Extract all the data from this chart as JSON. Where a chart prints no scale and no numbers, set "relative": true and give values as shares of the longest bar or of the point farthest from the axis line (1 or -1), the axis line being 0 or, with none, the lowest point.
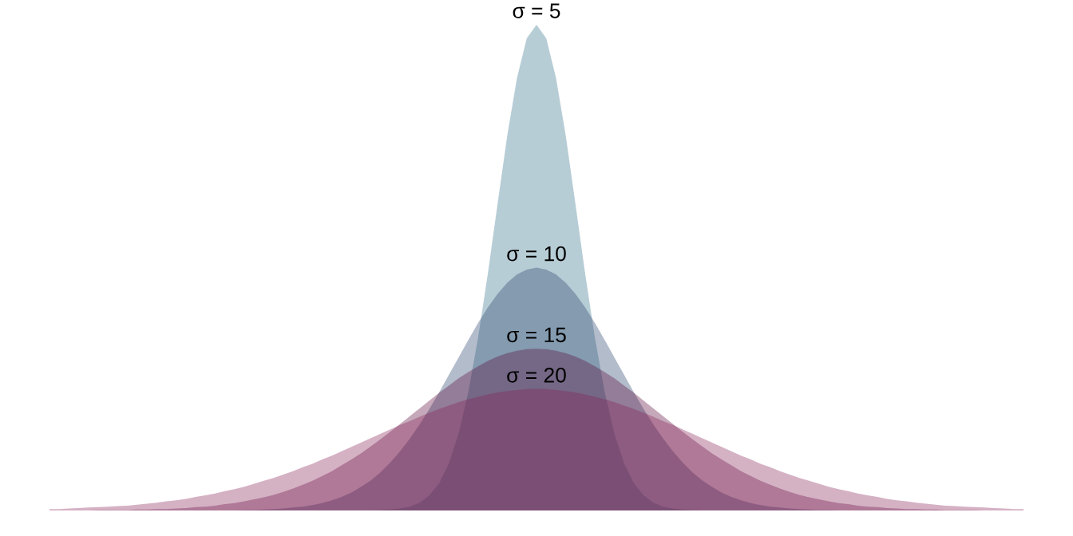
{
  "chart_data": {
    "type": "area",
    "relative": true,
    "categories": [
      null,
      null,
      null,
      null,
      null,
      null,
      null,
      null,
      null,
      null,
      null,
      null,
      null,
      null,
      null,
      null,
      null,
      null,
      null,
      null,
      null,
      null,
      null,
      null,
      null,
      null,
      null,
      null,
      null,
      null,
      null,
      null,
      null,
      null,
      null,
      null,
      null,
      null,
      null,
      null,
      null,
      null,
      null,
      null,
      null,
      null,
      null,
      null,
      null,
      null,
      null,
      null,
      null,
      null,
      null,
      null,
      null,
      null,
      null,
      null,
      null,
      null,
      null,
      null,
      null,
      null,
      null,
      null,
      null,
      null,
      null,
      null,
      null,
      null,
      null,
      null,
      null,
      null,
      null,
      null,
      null,
      null,
      null,
      null,
      null,
      null,
      null,
      null,
      null,
      null,
      null,
      null,
      null,
      null,
      null,
      null,
      null,
      null,
      null,
      null,
      null
    ],
    "series": [
      {
        "name": "σ = 5",
        "color": "#b7cdd6",
        "values": [
          0,
          0,
          0,
          0,
          0,
          0,
          0,
          0,
          0,
          0,
          0,
          0,
          0,
          0,
          0,
          0,
          0,
          0,
          0,
          0,
          0,
          0,
          0,
          0,
          0,
          0,
          0,
          0,
          0,
          0,
          0,
          0,
          0,
          0,
          0.001,
          0.002,
          0.004,
          0.008,
          0.016,
          0.031,
          0.056,
          0.097,
          0.158,
          0.244,
          0.355,
          0.487,
          0.631,
          0.772,
          0.891,
          0.972,
          1,
          0.972,
          0.891,
          0.772,
          0.631,
          0.487,
          0.355,
          0.244,
          0.158,
          0.097,
          0.056,
          0.031,
          0.016,
          0.008,
          0.004,
          0.002,
          0.001,
          0,
          0,
          0,
          0,
          0,
          0,
          0,
          0,
          0,
          0,
          0,
          0,
          0,
          0,
          0,
          0,
          0,
          0,
          0,
          0,
          0,
          0,
          0,
          0,
          0,
          0,
          0,
          0,
          0,
          0,
          0,
          0,
          0,
          0
        ]
      },
      {
        "name": "σ = 10",
        "color": "#b3bccb",
        "values": [
          0,
          0,
          0,
          0,
          0,
          0,
          0,
          0,
          0,
          0,
          0,
          0,
          0,
          0,
          0,
          0,
          0,
          0,
          0,
          0,
          0.001,
          0.001,
          0.002,
          0.003,
          0.004,
          0.006,
          0.008,
          0.011,
          0.015,
          0.021,
          0.028,
          0.037,
          0.049,
          0.062,
          0.079,
          0.099,
          0.122,
          0.148,
          0.177,
          0.209,
          0.243,
          0.279,
          0.315,
          0.351,
          0.386,
          0.418,
          0.446,
          0.469,
          0.486,
          0.496,
          0.5,
          0.496,
          0.486,
          0.469,
          0.446,
          0.418,
          0.386,
          0.351,
          0.315,
          0.279,
          0.243,
          0.209,
          0.177,
          0.148,
          0.122,
          0.099,
          0.079,
          0.062,
          0.049,
          0.037,
          0.028,
          0.021,
          0.015,
          0.011,
          0.008,
          0.006,
          0.004,
          0.003,
          0.002,
          0.001,
          0.001,
          0,
          0,
          0,
          0,
          0,
          0,
          0,
          0,
          0,
          0,
          0,
          0,
          0,
          0,
          0,
          0,
          0,
          0,
          0,
          0
        ]
      },
      {
        "name": "σ = 15",
        "color": "#c5a9ba",
        "values": [
          0,
          0,
          0,
          0,
          0,
          0.001,
          0.001,
          0.001,
          0.001,
          0.002,
          0.002,
          0.003,
          0.003,
          0.004,
          0.005,
          0.007,
          0.008,
          0.01,
          0.013,
          0.015,
          0.019,
          0.023,
          0.027,
          0.032,
          0.038,
          0.045,
          0.053,
          0.061,
          0.071,
          0.081,
          0.093,
          0.105,
          0.118,
          0.132,
          0.147,
          0.162,
          0.178,
          0.194,
          0.21,
          0.226,
          0.242,
          0.257,
          0.272,
          0.285,
          0.297,
          0.308,
          0.317,
          0.324,
          0.329,
          0.332,
          0.333,
          0.332,
          0.329,
          0.324,
          0.317,
          0.308,
          0.297,
          0.285,
          0.272,
          0.257,
          0.242,
          0.226,
          0.21,
          0.194,
          0.178,
          0.162,
          0.147,
          0.132,
          0.118,
          0.105,
          0.093,
          0.081,
          0.071,
          0.061,
          0.053,
          0.045,
          0.038,
          0.032,
          0.027,
          0.023,
          0.019,
          0.015,
          0.013,
          0.01,
          0.008,
          0.007,
          0.005,
          0.004,
          0.003,
          0.003,
          0.002,
          0.002,
          0.001,
          0.001,
          0.001,
          0.001,
          0,
          0,
          0,
          0,
          0
        ]
      },
      {
        "name": "σ = 20",
        "color": "#d5b1c4",
        "values": [
          0.003,
          0.003,
          0.004,
          0.005,
          0.006,
          0.007,
          0.008,
          0.009,
          0.01,
          0.012,
          0.014,
          0.016,
          0.019,
          0.021,
          0.024,
          0.028,
          0.031,
          0.035,
          0.04,
          0.044,
          0.049,
          0.055,
          0.061,
          0.067,
          0.074,
          0.081,
          0.089,
          0.096,
          0.105,
          0.113,
          0.122,
          0.131,
          0.14,
          0.149,
          0.158,
          0.167,
          0.176,
          0.184,
          0.193,
          0.201,
          0.209,
          0.216,
          0.223,
          0.229,
          0.234,
          0.239,
          0.243,
          0.246,
          0.248,
          0.25,
          0.25,
          0.25,
          0.248,
          0.246,
          0.243,
          0.239,
          0.234,
          0.229,
          0.223,
          0.216,
          0.209,
          0.201,
          0.193,
          0.184,
          0.176,
          0.167,
          0.158,
          0.149,
          0.14,
          0.131,
          0.122,
          0.113,
          0.105,
          0.096,
          0.089,
          0.081,
          0.074,
          0.067,
          0.061,
          0.055,
          0.049,
          0.044,
          0.04,
          0.035,
          0.031,
          0.028,
          0.024,
          0.021,
          0.019,
          0.016,
          0.014,
          0.012,
          0.01,
          0.009,
          0.008,
          0.007,
          0.006,
          0.005,
          0.004,
          0.003,
          0.003
        ]
      }
    ]
  }
}
